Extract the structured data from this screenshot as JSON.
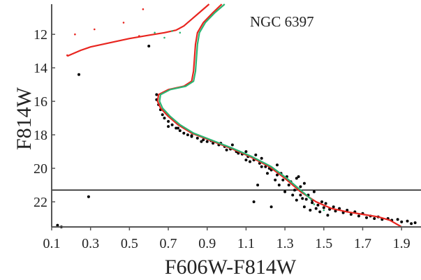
{
  "chart_data": {
    "type": "scatter",
    "title": "NGC 6397",
    "xlabel": "F606W-F814W",
    "ylabel": "F814W",
    "xlim": [
      0.1,
      2.0
    ],
    "ylim": [
      23.5,
      10.2
    ],
    "y_inverted": true,
    "grid": false,
    "x_ticks": [
      "0.1",
      "0.3",
      "0.5",
      "0.7",
      "0.9",
      "1.1",
      "1.3",
      "1.5",
      "1.7",
      "1.9"
    ],
    "y_ticks": [
      "12",
      "14",
      "16",
      "18",
      "20",
      "22"
    ],
    "x_tick_values": [
      0.1,
      0.3,
      0.5,
      0.7,
      0.9,
      1.1,
      1.3,
      1.5,
      1.7,
      1.9
    ],
    "y_tick_values": [
      12,
      14,
      16,
      18,
      20,
      22
    ],
    "hline": {
      "y": 21.3,
      "color": "#000000"
    },
    "series": [
      {
        "kind": "points",
        "color": "#000000",
        "points": [
          [
            0.64,
            15.6
          ],
          [
            0.64,
            15.9
          ],
          [
            0.65,
            16.2
          ],
          [
            0.66,
            16.5
          ],
          [
            0.67,
            16.8
          ],
          [
            0.68,
            17.0
          ],
          [
            0.7,
            17.2
          ],
          [
            0.72,
            17.4
          ],
          [
            0.74,
            17.6
          ],
          [
            0.76,
            17.75
          ],
          [
            0.78,
            17.9
          ],
          [
            0.8,
            18.0
          ],
          [
            0.82,
            18.1
          ],
          [
            0.85,
            18.2
          ],
          [
            0.88,
            18.3
          ],
          [
            0.9,
            18.4
          ],
          [
            0.93,
            18.5
          ],
          [
            0.96,
            18.6
          ],
          [
            0.99,
            18.7
          ],
          [
            1.02,
            18.85
          ],
          [
            1.05,
            19.0
          ],
          [
            1.08,
            19.15
          ],
          [
            1.11,
            19.3
          ],
          [
            1.14,
            19.5
          ],
          [
            1.17,
            19.7
          ],
          [
            1.2,
            19.9
          ],
          [
            1.23,
            20.1
          ],
          [
            1.26,
            20.4
          ],
          [
            1.29,
            20.7
          ],
          [
            1.32,
            21.0
          ],
          [
            1.35,
            21.3
          ],
          [
            1.38,
            21.6
          ],
          [
            1.41,
            21.85
          ],
          [
            1.44,
            22.05
          ],
          [
            1.47,
            22.2
          ],
          [
            1.5,
            22.35
          ],
          [
            1.53,
            22.45
          ],
          [
            1.56,
            22.55
          ],
          [
            1.6,
            22.65
          ],
          [
            1.64,
            22.75
          ],
          [
            1.68,
            22.85
          ],
          [
            1.72,
            22.95
          ],
          [
            1.76,
            23.0
          ],
          [
            1.8,
            23.05
          ],
          [
            1.85,
            23.1
          ],
          [
            1.9,
            23.2
          ],
          [
            1.95,
            23.3
          ],
          [
            0.7,
            17.5
          ],
          [
            0.75,
            17.6
          ],
          [
            0.82,
            18.05
          ],
          [
            0.87,
            18.4
          ],
          [
            0.92,
            18.35
          ],
          [
            0.97,
            18.5
          ],
          [
            1.0,
            18.9
          ],
          [
            1.03,
            18.6
          ],
          [
            1.06,
            19.1
          ],
          [
            1.1,
            19.0
          ],
          [
            1.12,
            19.6
          ],
          [
            1.15,
            19.2
          ],
          [
            1.18,
            19.9
          ],
          [
            1.22,
            20.0
          ],
          [
            1.25,
            20.7
          ],
          [
            1.28,
            20.3
          ],
          [
            1.3,
            21.4
          ],
          [
            1.33,
            20.8
          ],
          [
            1.36,
            21.9
          ],
          [
            1.38,
            21.1
          ],
          [
            1.4,
            22.3
          ],
          [
            1.42,
            21.6
          ],
          [
            1.44,
            21.9
          ],
          [
            1.46,
            22.4
          ],
          [
            1.49,
            22.0
          ],
          [
            1.52,
            22.8
          ],
          [
            1.55,
            22.3
          ],
          [
            1.58,
            22.4
          ],
          [
            1.62,
            22.5
          ],
          [
            1.66,
            22.6
          ],
          [
            1.7,
            22.7
          ],
          [
            1.74,
            22.85
          ],
          [
            1.78,
            22.9
          ],
          [
            1.83,
            23.0
          ],
          [
            1.88,
            23.05
          ],
          [
            1.93,
            23.15
          ],
          [
            1.97,
            23.25
          ],
          [
            1.36,
            20.6
          ],
          [
            1.26,
            19.8
          ],
          [
            1.21,
            20.3
          ],
          [
            1.34,
            21.6
          ],
          [
            1.39,
            21.8
          ],
          [
            1.31,
            20.5
          ],
          [
            1.45,
            21.4
          ],
          [
            1.48,
            22.6
          ],
          [
            1.27,
            21.0
          ],
          [
            1.18,
            19.4
          ],
          [
            1.1,
            19.5
          ],
          [
            1.4,
            20.9
          ],
          [
            1.43,
            22.5
          ],
          [
            1.51,
            22.1
          ],
          [
            0.6,
            12.7
          ],
          [
            0.24,
            14.4
          ],
          [
            0.29,
            21.7
          ],
          [
            0.13,
            23.4
          ],
          [
            0.15,
            23.5
          ],
          [
            1.14,
            22.0
          ],
          [
            1.23,
            22.3
          ],
          [
            1.37,
            20.5
          ],
          [
            1.16,
            21.0
          ]
        ]
      },
      {
        "kind": "line",
        "color": "#e8251f",
        "points": [
          [
            0.18,
            13.3
          ],
          [
            0.2,
            13.2
          ],
          [
            0.25,
            12.95
          ],
          [
            0.3,
            12.75
          ],
          [
            0.4,
            12.5
          ],
          [
            0.5,
            12.25
          ],
          [
            0.6,
            12.05
          ],
          [
            0.68,
            11.9
          ],
          [
            0.74,
            11.75
          ],
          [
            0.78,
            11.5
          ],
          [
            0.82,
            11.1
          ],
          [
            0.86,
            10.7
          ],
          [
            0.91,
            10.2
          ]
        ]
      },
      {
        "kind": "line",
        "color": "#e8251f",
        "points": [
          [
            0.975,
            10.2
          ],
          [
            0.93,
            10.7
          ],
          [
            0.88,
            11.3
          ],
          [
            0.85,
            11.9
          ],
          [
            0.84,
            12.6
          ],
          [
            0.835,
            13.4
          ],
          [
            0.83,
            14.2
          ],
          [
            0.82,
            14.8
          ],
          [
            0.78,
            15.1
          ],
          [
            0.7,
            15.3
          ],
          [
            0.65,
            15.6
          ],
          [
            0.645,
            16.0
          ],
          [
            0.66,
            16.4
          ],
          [
            0.7,
            16.9
          ],
          [
            0.75,
            17.4
          ],
          [
            0.82,
            17.9
          ],
          [
            0.92,
            18.35
          ],
          [
            1.02,
            18.8
          ],
          [
            1.12,
            19.3
          ],
          [
            1.22,
            19.9
          ],
          [
            1.3,
            20.6
          ],
          [
            1.38,
            21.4
          ],
          [
            1.46,
            22.0
          ],
          [
            1.54,
            22.4
          ],
          [
            1.62,
            22.6
          ],
          [
            1.7,
            22.75
          ],
          [
            1.78,
            22.9
          ],
          [
            1.84,
            23.1
          ],
          [
            1.9,
            23.5
          ]
        ]
      },
      {
        "kind": "line",
        "color": "#2bb573",
        "points": [
          [
            0.99,
            10.2
          ],
          [
            0.94,
            10.7
          ],
          [
            0.89,
            11.3
          ],
          [
            0.86,
            11.9
          ],
          [
            0.85,
            12.6
          ],
          [
            0.845,
            13.4
          ],
          [
            0.84,
            14.2
          ],
          [
            0.83,
            14.8
          ],
          [
            0.79,
            15.1
          ],
          [
            0.71,
            15.3
          ],
          [
            0.66,
            15.6
          ],
          [
            0.655,
            16.0
          ],
          [
            0.67,
            16.4
          ],
          [
            0.71,
            16.9
          ],
          [
            0.76,
            17.4
          ],
          [
            0.83,
            17.9
          ],
          [
            0.93,
            18.35
          ],
          [
            1.03,
            18.8
          ],
          [
            1.13,
            19.3
          ],
          [
            1.23,
            19.9
          ],
          [
            1.31,
            20.6
          ],
          [
            1.38,
            21.3
          ],
          [
            1.44,
            21.9
          ]
        ]
      },
      {
        "kind": "points",
        "color": "#e8251f",
        "points": [
          [
            0.22,
            12.0
          ],
          [
            0.32,
            11.7
          ],
          [
            0.47,
            11.3
          ],
          [
            0.57,
            10.5
          ],
          [
            0.18,
            13.25
          ],
          [
            0.55,
            12.1
          ]
        ]
      },
      {
        "kind": "points",
        "color": "#2bb573",
        "points": [
          [
            0.63,
            11.9
          ],
          [
            0.68,
            12.2
          ],
          [
            0.72,
            11.8
          ],
          [
            0.76,
            11.9
          ],
          [
            1.45,
            22.15
          ],
          [
            1.5,
            22.5
          ]
        ]
      }
    ]
  }
}
